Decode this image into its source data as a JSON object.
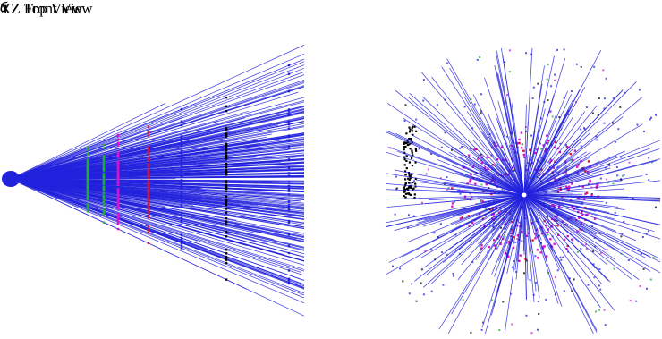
{
  "panels": {
    "top_view": {
      "title": "XZ Top View",
      "letter": "a"
    },
    "front_view": {
      "title": "YZ Front View",
      "letter": "б"
    }
  },
  "colors": {
    "track": "#2222dd",
    "hit_green": "#22aa33",
    "hit_magenta": "#dd11cc",
    "hit_red": "#dd1133",
    "hit_black": "#000000"
  },
  "icons": []
}
